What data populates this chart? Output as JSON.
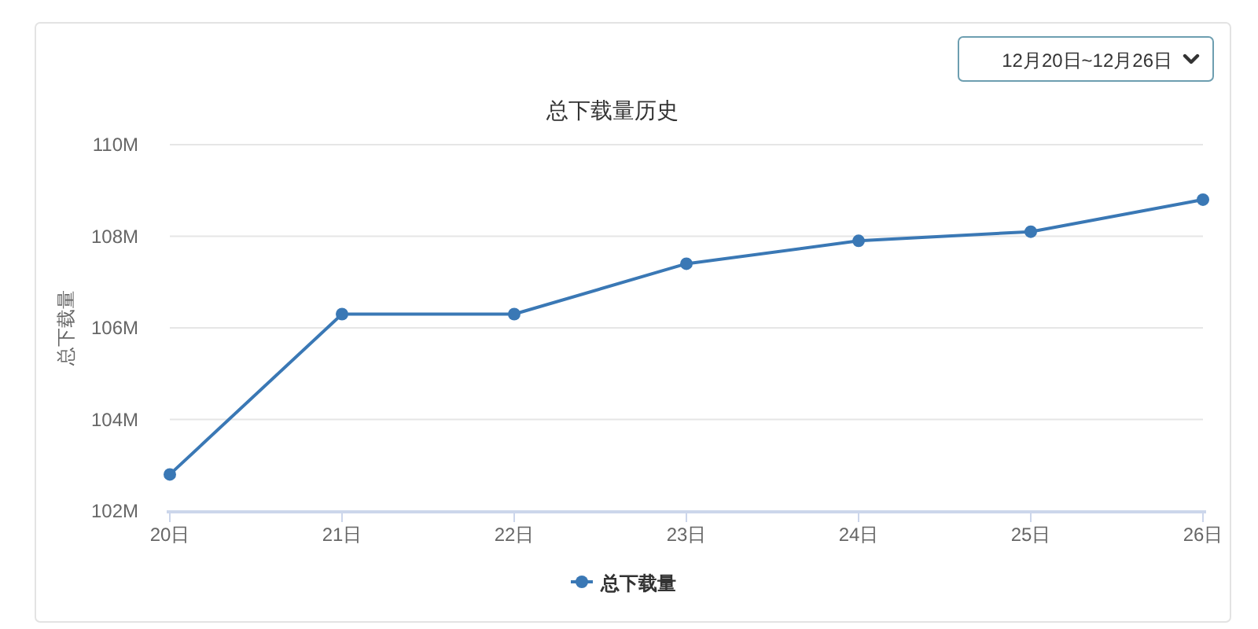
{
  "chart_data": {
    "type": "line",
    "title": "总下载量历史",
    "ylabel": "总下载量",
    "categories": [
      "20日",
      "21日",
      "22日",
      "23日",
      "24日",
      "25日",
      "26日"
    ],
    "series": [
      {
        "name": "总下载量",
        "color": "#3a78b5",
        "values": [
          102.8,
          106.3,
          106.3,
          107.4,
          107.9,
          108.1,
          108.8
        ]
      }
    ],
    "ylim": [
      102,
      110
    ],
    "yticks": [
      {
        "value": 102,
        "label": "102M"
      },
      {
        "value": 104,
        "label": "104M"
      },
      {
        "value": 106,
        "label": "106M"
      },
      {
        "value": 108,
        "label": "108M"
      },
      {
        "value": 110,
        "label": "110M"
      }
    ],
    "grid": "y",
    "legend": "bottom",
    "marker": "circle",
    "line_style": "solid",
    "annotations": [
      "12月20日~12月26日"
    ]
  }
}
